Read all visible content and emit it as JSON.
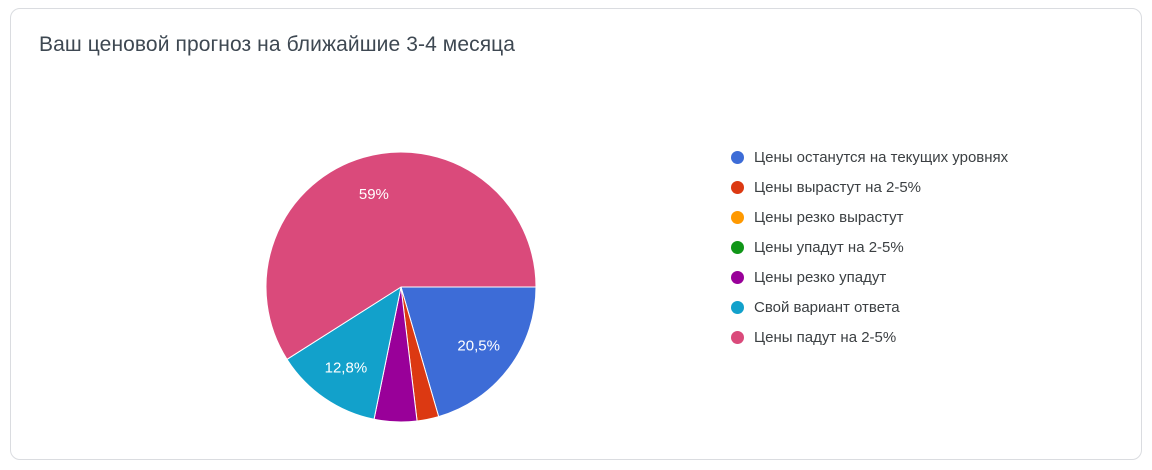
{
  "chart_data": {
    "type": "pie",
    "title": "Ваш ценовой прогноз на ближайшие 3-4 месяца",
    "legend_position": "right",
    "start_angle_deg": 90,
    "direction": "clockwise",
    "label_color": "#ffffff",
    "slices": [
      {
        "label": "Цены останутся на текущих уровнях",
        "value": 20.5,
        "color": "#3D6CD7",
        "data_label": "20,5%"
      },
      {
        "label": "Цены вырастут на 2-5%",
        "value": 2.6,
        "color": "#DC3912",
        "data_label": ""
      },
      {
        "label": "Цены резко вырастут",
        "value": 0,
        "color": "#FF9900",
        "data_label": ""
      },
      {
        "label": "Цены упадут на 2-5%",
        "value": 0,
        "color": "#109618",
        "data_label": ""
      },
      {
        "label": "Цены резко упадут",
        "value": 5.1,
        "color": "#990099",
        "data_label": ""
      },
      {
        "label": "Свой вариант ответа",
        "value": 12.8,
        "color": "#12A1CB",
        "data_label": "12,8%"
      },
      {
        "label": "Цены падут на 2-5%",
        "value": 59,
        "color": "#DA4A7B",
        "data_label": "59%"
      }
    ]
  }
}
